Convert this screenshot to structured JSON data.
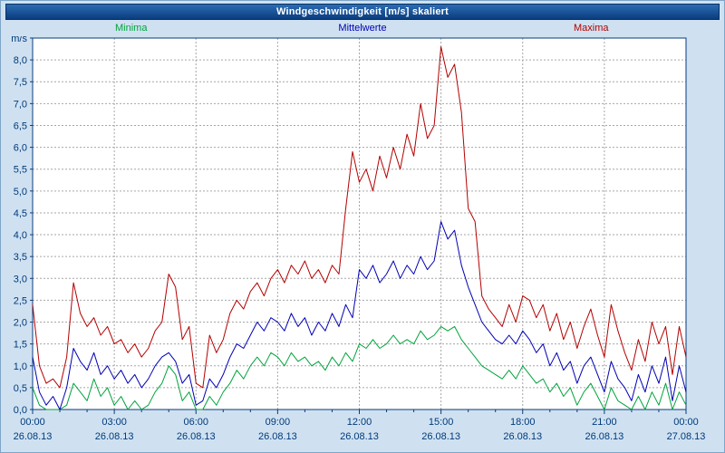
{
  "chart_data": {
    "type": "line",
    "title": "Windgeschwindigkeit [m/s] skaliert",
    "ylabel": "m/s",
    "xlabel": "",
    "ylim": [
      0,
      8.5
    ],
    "y_tick_step": 0.5,
    "grid": true,
    "legend_position": "top",
    "y_tick_labels": [
      "m/s",
      "8,0",
      "7,5",
      "7,0",
      "6,5",
      "6,0",
      "5,5",
      "5,0",
      "4,5",
      "4,0",
      "3,5",
      "3,0",
      "2,5",
      "2,0",
      "1,5",
      "1,0",
      "0,5",
      "0,0"
    ],
    "x_tick_labels_time": [
      "00:00",
      "03:00",
      "06:00",
      "09:00",
      "12:00",
      "15:00",
      "18:00",
      "21:00",
      "00:00"
    ],
    "x_tick_labels_date": [
      "26.08.13",
      "26.08.13",
      "26.08.13",
      "26.08.13",
      "26.08.13",
      "26.08.13",
      "26.08.13",
      "26.08.13",
      "27.08.13"
    ],
    "sample_interval_minutes": 15,
    "x_hours_total": 24,
    "grid_color": "#a6a6a6",
    "axis_color": "#0a3c7d",
    "label_color": "#003a7a",
    "plot_background": "#ffffff",
    "series": [
      {
        "name": "Minima",
        "color": "#00a33c",
        "values": [
          0.5,
          0.1,
          0.0,
          0.0,
          0.0,
          0.1,
          0.6,
          0.4,
          0.2,
          0.7,
          0.3,
          0.5,
          0.1,
          0.3,
          0.0,
          0.2,
          0.0,
          0.1,
          0.4,
          0.6,
          1.0,
          0.8,
          0.2,
          0.4,
          0.0,
          0.0,
          0.3,
          0.1,
          0.4,
          0.6,
          0.9,
          0.7,
          1.0,
          1.2,
          1.0,
          1.3,
          1.2,
          1.0,
          1.3,
          1.1,
          1.2,
          1.0,
          1.1,
          0.9,
          1.2,
          1.0,
          1.3,
          1.1,
          1.5,
          1.4,
          1.6,
          1.4,
          1.5,
          1.7,
          1.5,
          1.6,
          1.5,
          1.8,
          1.6,
          1.7,
          1.9,
          1.8,
          1.9,
          1.6,
          1.4,
          1.2,
          1.0,
          0.9,
          0.8,
          0.7,
          0.9,
          0.7,
          1.0,
          0.8,
          0.6,
          0.7,
          0.4,
          0.6,
          0.3,
          0.5,
          0.1,
          0.4,
          0.6,
          0.3,
          0.0,
          0.5,
          0.2,
          0.1,
          0.0,
          0.3,
          0.0,
          0.4,
          0.1,
          0.6,
          0.0,
          0.4,
          0.1
        ]
      },
      {
        "name": "Mittelwerte",
        "color": "#0000b4",
        "values": [
          1.2,
          0.4,
          0.1,
          0.3,
          0.0,
          0.5,
          1.4,
          1.1,
          0.9,
          1.3,
          0.8,
          1.0,
          0.7,
          0.9,
          0.6,
          0.8,
          0.5,
          0.7,
          1.0,
          1.2,
          1.3,
          1.1,
          0.6,
          0.8,
          0.1,
          0.2,
          0.7,
          0.5,
          0.8,
          1.2,
          1.5,
          1.4,
          1.7,
          2.0,
          1.8,
          2.1,
          2.0,
          1.8,
          2.2,
          1.9,
          2.1,
          1.7,
          2.0,
          1.8,
          2.2,
          1.9,
          2.4,
          2.1,
          3.2,
          3.0,
          3.3,
          2.9,
          3.1,
          3.4,
          3.0,
          3.3,
          3.1,
          3.5,
          3.2,
          3.4,
          4.3,
          3.9,
          4.1,
          3.3,
          2.8,
          2.4,
          2.0,
          1.8,
          1.6,
          1.5,
          1.7,
          1.5,
          1.8,
          1.6,
          1.3,
          1.5,
          1.0,
          1.3,
          0.9,
          1.1,
          0.6,
          1.0,
          1.2,
          0.8,
          0.4,
          1.1,
          0.7,
          0.5,
          0.2,
          0.8,
          0.4,
          1.0,
          0.6,
          1.2,
          0.2,
          1.0,
          0.4
        ]
      },
      {
        "name": "Maxima",
        "color": "#b40000",
        "values": [
          2.4,
          1.0,
          0.6,
          0.7,
          0.5,
          1.2,
          2.9,
          2.2,
          1.9,
          2.1,
          1.7,
          1.9,
          1.5,
          1.6,
          1.3,
          1.5,
          1.2,
          1.4,
          1.8,
          2.0,
          3.1,
          2.8,
          1.6,
          1.9,
          0.6,
          0.5,
          1.7,
          1.3,
          1.6,
          2.2,
          2.5,
          2.3,
          2.7,
          2.9,
          2.6,
          3.0,
          3.2,
          2.9,
          3.3,
          3.1,
          3.4,
          3.0,
          3.2,
          2.9,
          3.3,
          3.1,
          4.6,
          5.9,
          5.2,
          5.5,
          5.0,
          5.8,
          5.3,
          6.0,
          5.5,
          6.3,
          5.8,
          7.0,
          6.2,
          6.5,
          8.3,
          7.6,
          7.9,
          6.8,
          4.6,
          4.3,
          2.6,
          2.3,
          2.1,
          1.9,
          2.4,
          2.0,
          2.6,
          2.5,
          2.1,
          2.4,
          1.8,
          2.2,
          1.6,
          2.0,
          1.4,
          1.9,
          2.3,
          1.7,
          1.2,
          2.4,
          1.8,
          1.3,
          0.9,
          1.6,
          1.1,
          2.0,
          1.5,
          1.9,
          0.8,
          1.9,
          1.2
        ]
      }
    ]
  }
}
